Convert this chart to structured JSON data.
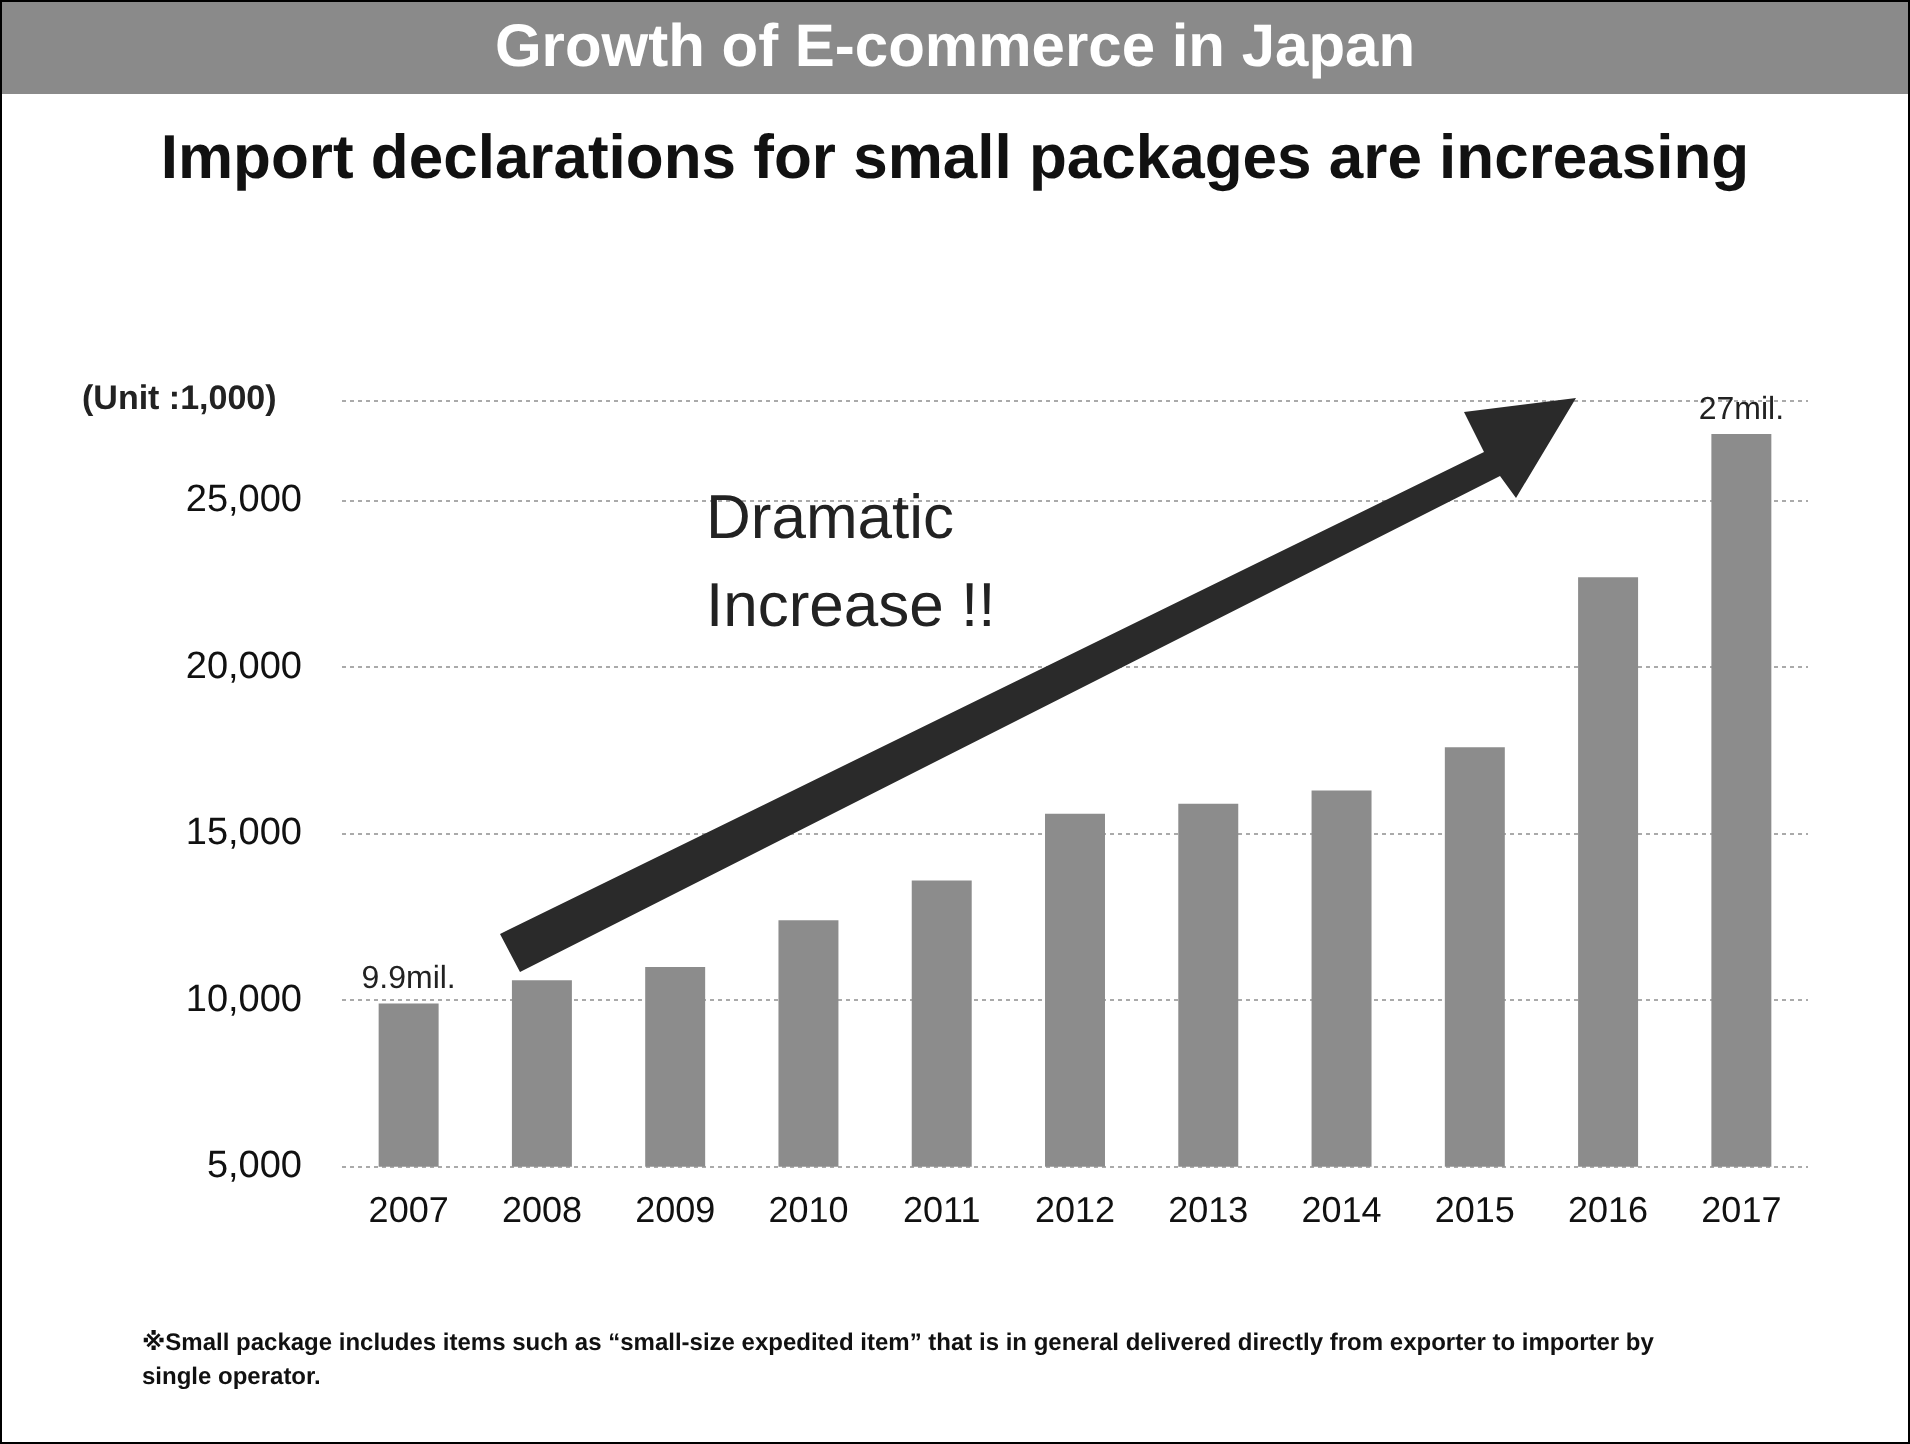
{
  "chart_data": {
    "type": "bar",
    "title": "Growth of E-commerce in Japan",
    "subtitle": "Import declarations for small packages are increasing",
    "ylabel": "(Unit :1,000)",
    "categories": [
      "2007",
      "2008",
      "2009",
      "2010",
      "2011",
      "2012",
      "2013",
      "2014",
      "2015",
      "2016",
      "2017"
    ],
    "values": [
      9900,
      10600,
      11000,
      12400,
      13600,
      15600,
      15900,
      16300,
      17600,
      22700,
      27000
    ],
    "color": "#8c8c8c",
    "ylim": [
      5000,
      28000
    ],
    "yticks": [
      {
        "value": 5000,
        "label": "5,000"
      },
      {
        "value": 10000,
        "label": "10,000"
      },
      {
        "value": 15000,
        "label": "15,000"
      },
      {
        "value": 20000,
        "label": "20,000"
      },
      {
        "value": 25000,
        "label": "25,000"
      },
      {
        "value": 28000,
        "label": null
      }
    ],
    "grid": "y",
    "annotations": [
      "Dramatic Increase !!",
      {
        "text": "9.9mil.",
        "x": "2007",
        "y": 9900
      },
      {
        "text": "27mil.",
        "x": "2017",
        "y": 27000
      },
      "※Small package includes items such as “small-size expedited item” that is in general delivered directly from exporter to importer by single operator."
    ]
  }
}
